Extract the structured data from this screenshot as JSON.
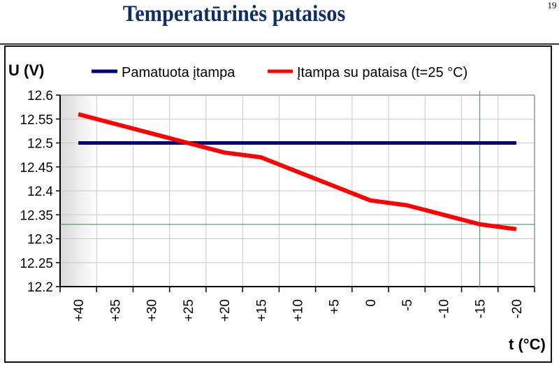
{
  "slide": {
    "title": "Temperatūrinės pataisos",
    "page_number": "19"
  },
  "chart_data": {
    "type": "line",
    "title": "",
    "ylabel": "U (V)",
    "xlabel": "t (°C)",
    "ylim": [
      12.2,
      12.6
    ],
    "yticks": [
      "12.6",
      "12.55",
      "12.5",
      "12.45",
      "12.4",
      "12.35",
      "12.3",
      "12.25",
      "12.2"
    ],
    "ytick_values": [
      12.6,
      12.55,
      12.5,
      12.45,
      12.4,
      12.35,
      12.3,
      12.25,
      12.2
    ],
    "categories": [
      "+40",
      "+35",
      "+30",
      "+25",
      "+20",
      "+15",
      "+10",
      "+5",
      "0",
      "-5",
      "-10",
      "-15",
      "-20"
    ],
    "grid": true,
    "legend_position": "top",
    "series": [
      {
        "name": "Pamatuota įtampa",
        "color": "#00007f",
        "values": [
          12.5,
          12.5,
          12.5,
          12.5,
          12.5,
          12.5,
          12.5,
          12.5,
          12.5,
          12.5,
          12.5,
          12.5,
          12.5
        ]
      },
      {
        "name": "Įtampa su pataisa (t=25 °C)",
        "color": "#ff0000",
        "values": [
          12.56,
          12.54,
          12.52,
          12.5,
          12.48,
          12.47,
          12.44,
          12.41,
          12.38,
          12.37,
          12.35,
          12.33,
          12.32
        ]
      }
    ],
    "reference_lines": {
      "horizontal_value": 12.33,
      "vertical_category": "-15",
      "color": "#2e8b57"
    }
  }
}
